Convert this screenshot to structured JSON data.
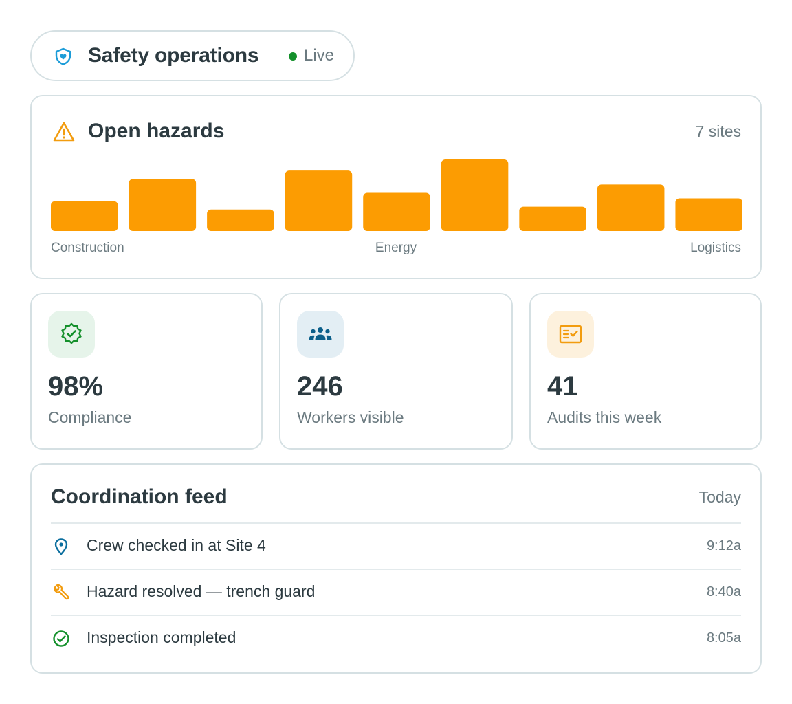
{
  "header": {
    "title": "Safety operations",
    "status": "Live",
    "status_color": "#14902b",
    "icon": "shield-heart-icon"
  },
  "hazards": {
    "title": "Open hazards",
    "icon": "warning-triangle-icon",
    "sites_label": "7 sites",
    "bar_color": "#fc9c02",
    "chart_data": {
      "type": "bar",
      "values": [
        43,
        75,
        31,
        87,
        55,
        103,
        35,
        67,
        47
      ],
      "axis_labels": [
        "Construction",
        "Energy",
        "Logistics"
      ]
    }
  },
  "stats": [
    {
      "value": "98%",
      "label": "Compliance",
      "icon": "badge-check-icon",
      "bg": "#e6f4ea",
      "color": "#14902b"
    },
    {
      "value": "246",
      "label": "Workers visible",
      "icon": "people-group-icon",
      "bg": "#e3eef4",
      "color": "#0b5f8a"
    },
    {
      "value": "41",
      "label": "Audits this week",
      "icon": "checklist-icon",
      "bg": "#fdf1dd",
      "color": "#f29c0f"
    }
  ],
  "feed": {
    "title": "Coordination feed",
    "period": "Today",
    "items": [
      {
        "text": "Crew checked in at Site 4",
        "time": "9:12a",
        "icon": "map-pin-icon"
      },
      {
        "text": "Hazard resolved — trench guard",
        "time": "8:40a",
        "icon": "wrench-icon"
      },
      {
        "text": "Inspection completed",
        "time": "8:05a",
        "icon": "check-circle-icon"
      }
    ]
  }
}
